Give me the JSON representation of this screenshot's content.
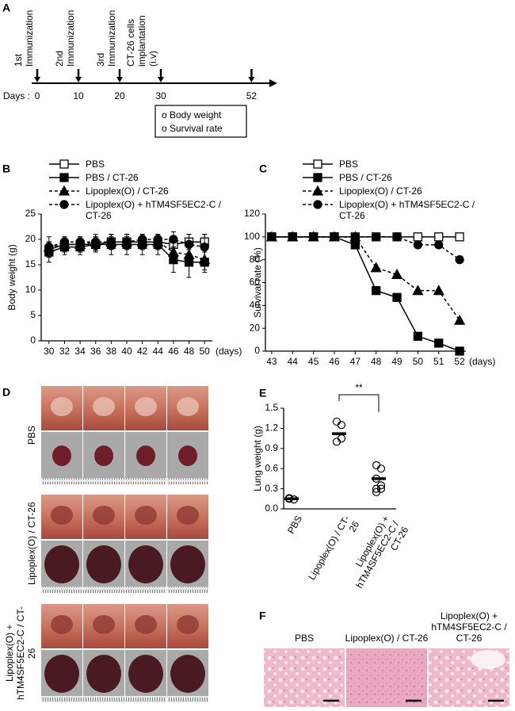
{
  "panel_labels": [
    "A",
    "B",
    "C",
    "D",
    "E",
    "F"
  ],
  "timeline": {
    "events": [
      "1st Immunization",
      "2nd Immunization",
      "3rd Immunization",
      "CT-26 cells implantation (i.v)"
    ],
    "days_label": "Days :",
    "day_ticks": [
      0,
      10,
      20,
      30,
      52
    ],
    "measurements": [
      "o Body weight",
      "o Survival rate"
    ]
  },
  "chart_data": [
    {
      "type": "line",
      "y_label": "Body weight (g)",
      "x_label": "(days)",
      "x": [
        30,
        32,
        34,
        36,
        38,
        40,
        42,
        44,
        46,
        48,
        50
      ],
      "xticks": [
        30,
        32,
        34,
        36,
        38,
        40,
        42,
        44,
        46,
        48,
        50
      ],
      "xlim": [
        29,
        51
      ],
      "ylim": [
        0,
        25
      ],
      "yticks": [
        0,
        5,
        10,
        15,
        20,
        25
      ],
      "series": [
        {
          "name": "PBS",
          "color": "#000000",
          "marker": "square",
          "filled": false,
          "dashed": false,
          "values": [
            18,
            19,
            19,
            19,
            19.5,
            19.5,
            19.5,
            19.5,
            19,
            19.5,
            19.5
          ],
          "errors": [
            1.5,
            1.2,
            1.2,
            1.2,
            1.5,
            1.5,
            1.5,
            1.5,
            1.5,
            1.5,
            1.5
          ]
        },
        {
          "name": "PBS / CT-26",
          "color": "#000000",
          "marker": "square",
          "filled": true,
          "dashed": false,
          "values": [
            17.5,
            18.5,
            18.5,
            19,
            19,
            19,
            19,
            19,
            16,
            15.5,
            15.5
          ],
          "errors": [
            2,
            1.5,
            1.5,
            1.5,
            2,
            2,
            2,
            2,
            2.5,
            3,
            2
          ]
        },
        {
          "name": "Lipoplex(O) / CT-26",
          "color": "#000000",
          "marker": "triangle",
          "filled": true,
          "dashed": true,
          "values": [
            18.5,
            19,
            19,
            19.5,
            19.5,
            19.5,
            19.5,
            19.5,
            17.5,
            17,
            16
          ],
          "errors": [
            2,
            1.5,
            1.5,
            1.5,
            1.5,
            1.5,
            1.5,
            1.5,
            2,
            2,
            2
          ]
        },
        {
          "name": "Lipoplex(O) + hTM4SF5EC2-C / CT-26",
          "color": "#000000",
          "marker": "circle",
          "filled": true,
          "dashed": true,
          "values": [
            18.5,
            19.5,
            19.5,
            19.5,
            19.5,
            19.5,
            20,
            20,
            20,
            19,
            18.5
          ],
          "errors": [
            1,
            1,
            1,
            1,
            1,
            1,
            1,
            1,
            1.5,
            2,
            2.5
          ]
        }
      ]
    },
    {
      "type": "line",
      "y_label": "Survival rate (%)",
      "x_label": "(days)",
      "x": [
        43,
        44,
        45,
        46,
        47,
        48,
        49,
        50,
        51,
        52
      ],
      "xticks": [
        43,
        44,
        45,
        46,
        47,
        48,
        49,
        50,
        51,
        52
      ],
      "xlim": [
        42.7,
        52.3
      ],
      "ylim": [
        0,
        120
      ],
      "yticks": [
        0,
        20,
        40,
        60,
        80,
        100,
        120
      ],
      "series": [
        {
          "name": "PBS",
          "color": "#000000",
          "marker": "square",
          "filled": false,
          "dashed": false,
          "values": [
            100,
            100,
            100,
            100,
            100,
            100,
            100,
            100,
            100,
            100
          ]
        },
        {
          "name": "PBS / CT-26",
          "color": "#000000",
          "marker": "square",
          "filled": true,
          "dashed": false,
          "values": [
            100,
            100,
            100,
            100,
            93,
            53,
            47,
            13,
            7,
            0
          ]
        },
        {
          "name": "Lipoplex(O) / CT-26",
          "color": "#000000",
          "marker": "triangle",
          "filled": true,
          "dashed": true,
          "values": [
            100,
            100,
            100,
            100,
            100,
            73,
            67,
            53,
            53,
            27
          ]
        },
        {
          "name": "Lipoplex(O) + hTM4SF5EC2-C / CT-26",
          "color": "#000000",
          "marker": "circle",
          "filled": true,
          "dashed": true,
          "values": [
            100,
            100,
            100,
            100,
            100,
            100,
            100,
            93,
            93,
            80
          ]
        }
      ]
    },
    {
      "type": "dot",
      "y_label": "Lung weight (g)",
      "annotation": "**",
      "categories": [
        "PBS",
        "Lipoplex(O) / CT-26",
        "Lipoplex(O) + hTM4SF5EC2-C / CT-26"
      ],
      "points": [
        [
          0.15,
          0.14,
          0.16
        ],
        [
          1.3,
          1.25,
          1.0,
          1.05
        ],
        [
          0.65,
          0.6,
          0.45,
          0.35,
          0.3,
          0.3,
          0.25
        ]
      ],
      "means": [
        0.15,
        1.12,
        0.45
      ],
      "ylim": [
        0,
        1.5
      ],
      "yticks": [
        {
          "value": 0,
          "label": "0.0"
        },
        0.3,
        0.6,
        0.9,
        1.2,
        1.5
      ]
    }
  ],
  "photos": {
    "groups": [
      "PBS",
      "Lipoplex(O) / CT-26",
      "Lipoplex(O) + hTM4SF5EC2-C / CT-26"
    ]
  },
  "histology": {
    "groups": [
      "PBS",
      "Lipoplex(O) / CT-26",
      "Lipoplex(O) + hTM4SF5EC2-C / CT-26"
    ]
  }
}
